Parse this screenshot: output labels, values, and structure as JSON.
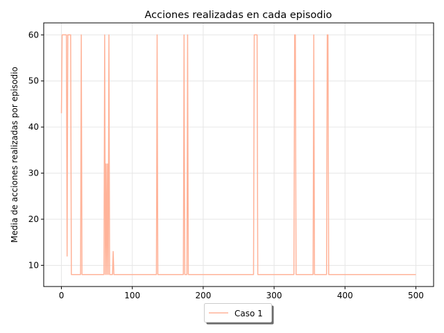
{
  "chart_data": {
    "type": "line",
    "title": "Acciones realizadas en cada episodio",
    "xlabel": "",
    "ylabel": "Media de acciones realizadas por episodio",
    "xlim": [
      -25,
      525
    ],
    "ylim": [
      5.4,
      62.6
    ],
    "xticks": [
      0,
      100,
      200,
      300,
      400,
      500
    ],
    "yticks": [
      10,
      20,
      30,
      40,
      50,
      60
    ],
    "grid": true,
    "legend_position": "bottom-center",
    "series": [
      {
        "name": "Caso 1",
        "color": "#ffb399",
        "x": [
          0,
          1,
          7,
          8,
          9,
          10,
          12,
          13,
          14,
          27,
          28,
          29,
          60,
          61,
          62,
          63,
          64,
          65,
          66,
          67,
          68,
          72,
          73,
          74,
          75,
          134,
          135,
          136,
          172,
          173,
          174,
          177,
          178,
          179,
          271,
          272,
          276,
          277,
          328,
          329,
          330,
          331,
          332,
          355,
          356,
          357,
          374,
          375,
          376,
          377,
          500
        ],
        "y": [
          43,
          60,
          60,
          12,
          60,
          60,
          60,
          60,
          8,
          8,
          60,
          8,
          8,
          60,
          8,
          32,
          8,
          32,
          8,
          60,
          8,
          8,
          13,
          8,
          8,
          8,
          60,
          8,
          8,
          60,
          8,
          8,
          60,
          8,
          8,
          60,
          60,
          8,
          8,
          60,
          60,
          8,
          8,
          8,
          60,
          8,
          8,
          60,
          60,
          8,
          8
        ]
      }
    ],
    "legend": [
      {
        "label": "Caso 1",
        "color": "#ffb399"
      }
    ]
  }
}
